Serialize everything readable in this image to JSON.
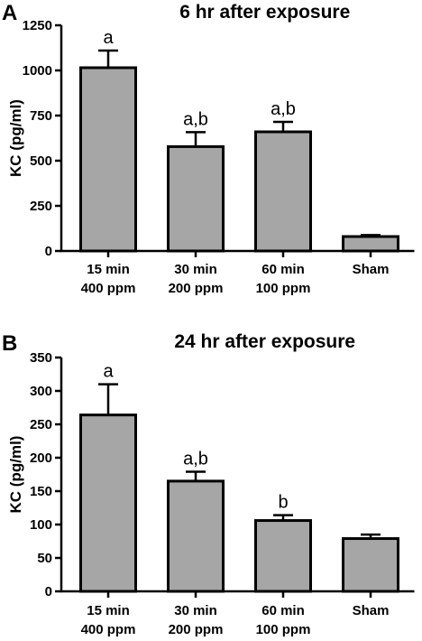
{
  "chart_data": [
    {
      "type": "bar",
      "panel": "A",
      "title": "6 hr after exposure",
      "ylabel": "KC (pg/ml)",
      "ylim": [
        0,
        1250
      ],
      "yticks": [
        0,
        250,
        500,
        750,
        1000,
        1250
      ],
      "categories": [
        [
          "15 min",
          "400 ppm"
        ],
        [
          "30 min",
          "200 ppm"
        ],
        [
          "60 min",
          "100 ppm"
        ],
        [
          "Sham"
        ]
      ],
      "values": [
        1015,
        578,
        660,
        80
      ],
      "errors": [
        95,
        80,
        55,
        8
      ],
      "annotations": [
        "a",
        "a,b",
        "a,b",
        ""
      ],
      "bar_color": "#a6a6a6",
      "grid": false
    },
    {
      "type": "bar",
      "panel": "B",
      "title": "24 hr after exposure",
      "ylabel": "KC (pg/ml)",
      "ylim": [
        0,
        350
      ],
      "yticks": [
        0,
        50,
        100,
        150,
        200,
        250,
        300,
        350
      ],
      "categories": [
        [
          "15 min",
          "400 ppm"
        ],
        [
          "30 min",
          "200 ppm"
        ],
        [
          "60 min",
          "100 ppm"
        ],
        [
          "Sham"
        ]
      ],
      "values": [
        264,
        165,
        106,
        79
      ],
      "errors": [
        46,
        14,
        8,
        6
      ],
      "annotations": [
        "a",
        "a,b",
        "b",
        ""
      ],
      "bar_color": "#a6a6a6",
      "grid": false
    }
  ]
}
